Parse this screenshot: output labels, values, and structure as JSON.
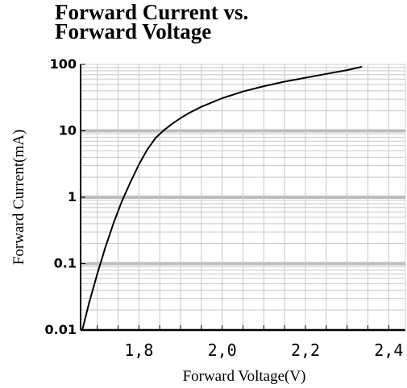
{
  "chart_data": {
    "type": "line",
    "title": "Forward Current vs.",
    "subtitle": "Forward Voltage",
    "xlabel": "Forward Voltage(V)",
    "ylabel": "Forward Current(mA)",
    "x_ticks": [
      1.8,
      2.0,
      2.2,
      2.4
    ],
    "x_tick_labels": [
      "1,8",
      "2,0",
      "2,2",
      "2,4"
    ],
    "y_ticks": [
      0.01,
      0.1,
      1,
      10,
      100
    ],
    "y_tick_labels": [
      "0.01",
      "0.1",
      "1",
      "10",
      "100"
    ],
    "xlim": [
      1.66,
      2.44
    ],
    "ylim": [
      0.01,
      100
    ],
    "y_scale": "log",
    "grid": true,
    "series": [
      {
        "x": [
          1.664,
          1.68,
          1.7,
          1.72,
          1.74,
          1.76,
          1.78,
          1.8,
          1.82,
          1.84,
          1.86,
          1.88,
          1.9,
          1.92,
          1.95,
          2.0,
          2.05,
          2.1,
          2.15,
          2.2,
          2.25,
          2.3,
          2.335
        ],
        "y": [
          0.01,
          0.025,
          0.07,
          0.18,
          0.42,
          0.9,
          1.7,
          3.1,
          5.2,
          7.8,
          10.2,
          12.8,
          15.5,
          18.5,
          23,
          31,
          39,
          47,
          55,
          63,
          72,
          82,
          92
        ]
      }
    ],
    "colors": {
      "curve": "#000000",
      "grid_fine": "#c8c8c8",
      "grid_decade": "#bdbdbd",
      "frame": "#000000"
    }
  }
}
